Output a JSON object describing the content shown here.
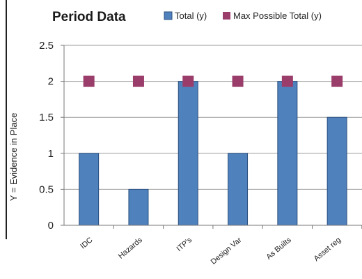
{
  "chart_data": {
    "type": "bar",
    "title": "Period Data",
    "xlabel": "",
    "ylabel": "Y = Evidence in Place",
    "categories": [
      "IDC",
      "Hazards",
      "ITP's",
      "Design Var",
      "As Builts",
      "Asset reg"
    ],
    "series": [
      {
        "name": "Total (y)",
        "kind": "bar",
        "color": "#4f81bd",
        "values": [
          1,
          0.5,
          2,
          1,
          2,
          1.5
        ]
      },
      {
        "name": "Max Possible Total (y)",
        "kind": "marker",
        "color": "#9b3d6b",
        "values": [
          2,
          2,
          2,
          2,
          2,
          2
        ]
      }
    ],
    "yticks": [
      "0",
      "0.5",
      "1",
      "1.5",
      "2",
      "2.5"
    ],
    "ylim": [
      0,
      2.5
    ],
    "grid": true,
    "legend_position": "top-right"
  }
}
